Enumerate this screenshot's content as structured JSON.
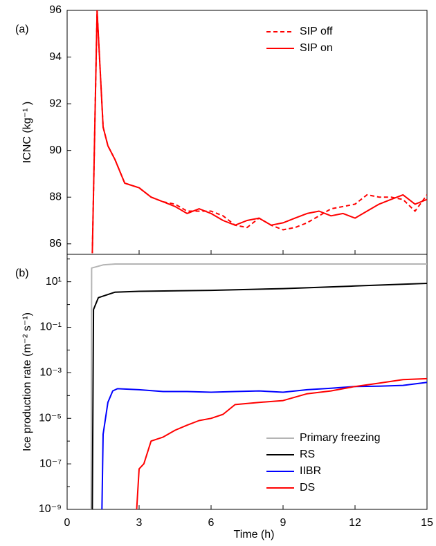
{
  "chart_data": [
    {
      "type": "line",
      "panel_label": "(a)",
      "ylabel": "ICNC (kg⁻¹ )",
      "xlim": [
        0,
        15
      ],
      "xticks": [
        0,
        3,
        6,
        9,
        12,
        15
      ],
      "ylim": [
        85.55,
        96
      ],
      "yticks": [
        86,
        88,
        90,
        92,
        94,
        96
      ],
      "legend": "upper right",
      "x": [
        1.05,
        1.25,
        1.5,
        1.7,
        2,
        2.4,
        3,
        3.5,
        4,
        4.5,
        5,
        5.5,
        6,
        6.5,
        7,
        7.5,
        8,
        8.5,
        9,
        9.5,
        10,
        10.5,
        11,
        11.5,
        12,
        12.5,
        13,
        13.5,
        14,
        14.5,
        15
      ],
      "series": [
        {
          "name": "SIP off",
          "color": "#ff0000",
          "dash": true,
          "values": [
            85.6,
            96,
            91,
            90.2,
            89.6,
            88.6,
            88.4,
            88.0,
            87.8,
            87.7,
            87.4,
            87.4,
            87.4,
            87.2,
            86.8,
            86.7,
            87.1,
            86.8,
            86.6,
            86.7,
            86.9,
            87.2,
            87.5,
            87.6,
            87.7,
            88.1,
            88.0,
            88.0,
            87.9,
            87.4,
            88.1
          ]
        },
        {
          "name": "SIP on",
          "color": "#ff0000",
          "dash": false,
          "values": [
            85.6,
            96,
            91,
            90.2,
            89.6,
            88.6,
            88.4,
            88.0,
            87.8,
            87.6,
            87.3,
            87.5,
            87.3,
            87.0,
            86.8,
            87.0,
            87.1,
            86.8,
            86.9,
            87.1,
            87.3,
            87.4,
            87.2,
            87.3,
            87.1,
            87.4,
            87.7,
            87.9,
            88.1,
            87.7,
            87.9
          ]
        }
      ]
    },
    {
      "type": "line",
      "panel_label": "(b)",
      "ylabel": "Ice production rate (m⁻² s⁻¹)",
      "xlabel": "Time (h)",
      "log": true,
      "xlim": [
        0,
        15
      ],
      "xticks": [
        0,
        3,
        6,
        9,
        12,
        15
      ],
      "ylim": [
        1e-09,
        160
      ],
      "yticks": [
        {
          "value": 10,
          "label": "10¹"
        },
        {
          "value": 0.1,
          "label": "10⁻¹"
        },
        {
          "value": 0.001,
          "label": "10⁻³"
        },
        {
          "value": 1e-05,
          "label": "10⁻⁵"
        },
        {
          "value": 1e-07,
          "label": "10⁻⁷"
        },
        {
          "value": 1e-09,
          "label": "10⁻⁹"
        }
      ],
      "yminorticks": [
        100,
        1,
        0.01,
        0.0001,
        1e-06,
        1e-08
      ],
      "legend": "lower right",
      "series": [
        {
          "name": "Primary freezing",
          "color": "#b4b4b4",
          "dash": false,
          "x": [
            1,
            1.02,
            1.5,
            2,
            15
          ],
          "values": [
            1e-09,
            40,
            55,
            60,
            60
          ]
        },
        {
          "name": "RS",
          "color": "#000000",
          "dash": false,
          "x": [
            1.05,
            1.1,
            1.3,
            2,
            3,
            6,
            9,
            12,
            15
          ],
          "values": [
            1e-09,
            0.6,
            2,
            3.5,
            3.8,
            4.2,
            5,
            6.5,
            8.5
          ]
        },
        {
          "name": "IIBR",
          "color": "#0000ff",
          "dash": false,
          "x": [
            1.45,
            1.5,
            1.7,
            1.9,
            2.1,
            3,
            4,
            5,
            6,
            7,
            8,
            9,
            10,
            11,
            12,
            13,
            14,
            15
          ],
          "values": [
            1e-09,
            2e-06,
            5e-05,
            0.00016,
            0.0002,
            0.00018,
            0.00015,
            0.00015,
            0.00014,
            0.00015,
            0.00016,
            0.00014,
            0.00018,
            0.00021,
            0.00025,
            0.00026,
            0.00028,
            0.00038
          ]
        },
        {
          "name": "DS",
          "color": "#ff0000",
          "dash": false,
          "x": [
            2.9,
            3,
            3.2,
            3.5,
            4,
            4.5,
            5,
            5.5,
            6,
            6.5,
            7,
            8,
            9,
            10,
            11,
            12,
            13,
            14,
            15
          ],
          "values": [
            1e-09,
            6e-08,
            1e-07,
            1e-06,
            1.5e-06,
            3e-06,
            5e-06,
            8e-06,
            1e-05,
            1.5e-05,
            4e-05,
            5e-05,
            6e-05,
            0.00012,
            0.00016,
            0.00025,
            0.00035,
            0.0005,
            0.00055
          ]
        }
      ]
    }
  ]
}
